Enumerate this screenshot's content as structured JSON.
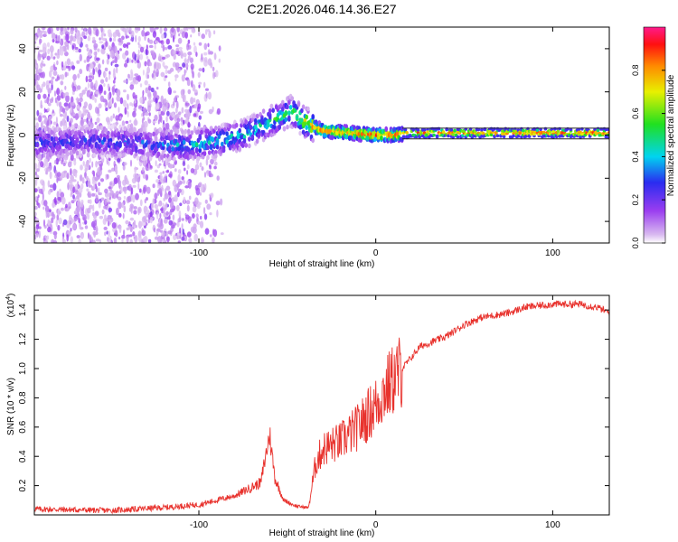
{
  "figure_title": "C2E1.2026.046.14.36.E27",
  "chart_data": [
    {
      "type": "heatmap",
      "xlabel": "Height of straight line (km)",
      "ylabel": "Frequency (Hz)",
      "xlim": [
        -193,
        132
      ],
      "ylim": [
        -50,
        50
      ],
      "xticks": [
        -100,
        0,
        100
      ],
      "yticks": [
        -40,
        -20,
        0,
        20,
        40
      ],
      "colorbar": {
        "label": "Normalized spectral amplitude",
        "range": [
          0,
          1
        ],
        "ticks": [
          "0.0",
          "0.2",
          "0.4",
          "0.6",
          "0.8"
        ],
        "tick_values": [
          0,
          0.2,
          0.4,
          0.6,
          0.8
        ]
      },
      "ridge": {
        "x": [
          -193,
          -170,
          -150,
          -130,
          -110,
          -90,
          -75,
          -60,
          -48,
          -40,
          -30,
          -15,
          0,
          10,
          20,
          60,
          132
        ],
        "frequency": [
          -4,
          -3,
          -3,
          -4,
          -5,
          -3,
          0,
          6,
          11,
          6,
          2,
          1,
          0,
          0,
          1,
          1,
          1
        ],
        "amplitude": [
          0.3,
          0.28,
          0.3,
          0.32,
          0.4,
          0.45,
          0.45,
          0.5,
          0.55,
          0.75,
          0.85,
          0.85,
          0.92,
          0.9,
          0.9,
          0.88,
          0.9
        ]
      }
    },
    {
      "type": "line",
      "xlabel": "Height of straight line (km)",
      "ylabel": "SNR (10 * v/v)",
      "y_multiplier": "(x10",
      "y_multiplier_exp": "4",
      "y_multiplier_close": ")",
      "xlim": [
        -193,
        132
      ],
      "ylim": [
        0,
        1.5
      ],
      "xticks": [
        -100,
        0,
        100
      ],
      "yticks": [
        0.2,
        0.4,
        0.6,
        0.8,
        1.0,
        1.2,
        1.4
      ],
      "ytick_labels": [
        "0.2",
        "0.4",
        "0.6",
        "0.8",
        "1.0",
        "1.2",
        "1.4"
      ],
      "series": [
        {
          "name": "SNR",
          "color": "#e8322d",
          "x": [
            -193,
            -150,
            -120,
            -100,
            -80,
            -65,
            -60,
            -57,
            -52,
            -45,
            -38,
            -34,
            -30,
            -20,
            -10,
            0,
            5,
            15,
            25,
            40,
            50,
            60,
            75,
            85,
            100,
            115,
            125,
            132
          ],
          "values": [
            0.04,
            0.03,
            0.05,
            0.07,
            0.13,
            0.22,
            0.55,
            0.25,
            0.1,
            0.06,
            0.05,
            0.35,
            0.45,
            0.5,
            0.6,
            0.75,
            0.85,
            1.0,
            1.15,
            1.22,
            1.3,
            1.35,
            1.38,
            1.42,
            1.44,
            1.44,
            1.42,
            1.38
          ]
        }
      ]
    }
  ]
}
